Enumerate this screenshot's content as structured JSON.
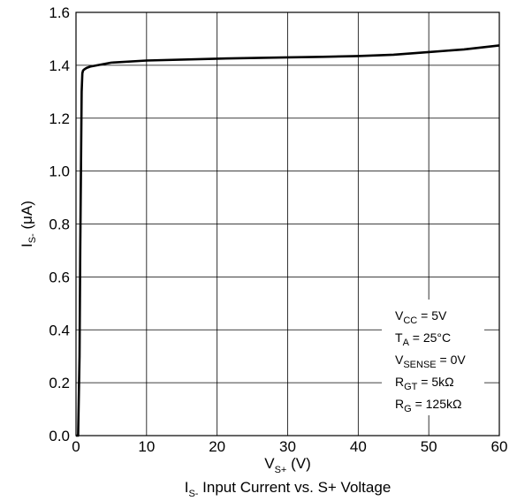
{
  "chart_data": {
    "type": "line",
    "title": "",
    "caption": {
      "main": "I",
      "sub": "S-",
      "rest": " Input Current vs. S+ Voltage"
    },
    "xlabel": {
      "main": "V",
      "sub": "S+",
      "rest": " (V)"
    },
    "ylabel": {
      "main": "I",
      "sub": "S-",
      "rest": " (μA)"
    },
    "xlim": [
      0,
      60
    ],
    "ylim": [
      0,
      1.6
    ],
    "xticks": [
      0,
      10,
      20,
      30,
      40,
      50,
      60
    ],
    "yticks": [
      0.0,
      0.2,
      0.4,
      0.6,
      0.8,
      1.0,
      1.2,
      1.4,
      1.6
    ],
    "xtick_labels": [
      "0",
      "10",
      "20",
      "30",
      "40",
      "50",
      "60"
    ],
    "ytick_labels": [
      "0.0",
      "0.2",
      "0.4",
      "0.6",
      "0.8",
      "1.0",
      "1.2",
      "1.4",
      "1.6"
    ],
    "grid": true,
    "series": [
      {
        "color": "#000000",
        "x": [
          0.0,
          0.3,
          0.5,
          0.6,
          0.7,
          0.8,
          0.9,
          1.0,
          1.2,
          1.5,
          2.0,
          3.0,
          5.0,
          10.0,
          20.0,
          30.0,
          35.0,
          40.0,
          45.0,
          50.0,
          55.0,
          60.0
        ],
        "y": [
          0.0,
          0.0,
          0.3,
          0.7,
          1.0,
          1.3,
          1.37,
          1.38,
          1.385,
          1.39,
          1.395,
          1.4,
          1.41,
          1.418,
          1.425,
          1.43,
          1.432,
          1.435,
          1.44,
          1.45,
          1.46,
          1.475
        ]
      }
    ],
    "conditions": [
      {
        "main": "V",
        "sub": "CC",
        "rest": " = 5V"
      },
      {
        "main": "T",
        "sub": "A",
        "rest": " = 25°C"
      },
      {
        "main": "V",
        "sub": "SENSE",
        "rest": " = 0V"
      },
      {
        "main": "R",
        "sub": "GT",
        "rest": " = 5kΩ"
      },
      {
        "main": "R",
        "sub": "G",
        "rest": " = 125kΩ"
      }
    ]
  }
}
